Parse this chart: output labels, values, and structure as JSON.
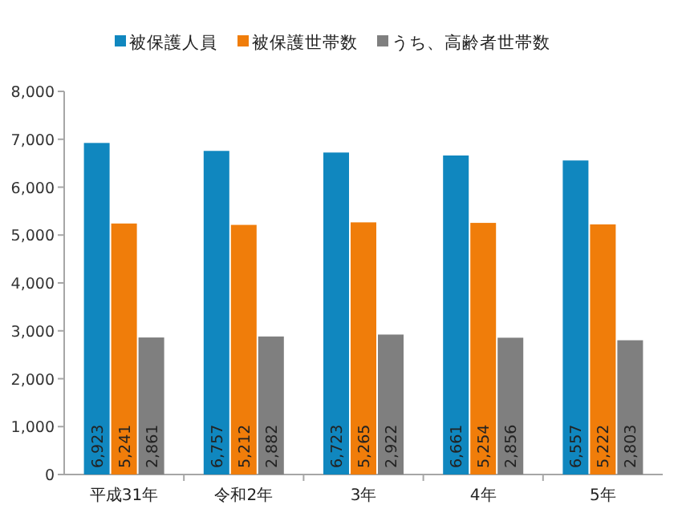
{
  "chart_data": {
    "type": "bar",
    "categories": [
      "平成31年",
      "令和2年",
      "3年",
      "4年",
      "5年"
    ],
    "series": [
      {
        "name": "被保護人員",
        "color": "#1087bf",
        "values": [
          6923,
          6757,
          6723,
          6661,
          6557
        ],
        "value_labels": [
          "6,923",
          "6,757",
          "6,723",
          "6,661",
          "6,557"
        ]
      },
      {
        "name": "被保護世帯数",
        "color": "#f07d0a",
        "values": [
          5241,
          5212,
          5265,
          5254,
          5222
        ],
        "value_labels": [
          "5,241",
          "5,212",
          "5,265",
          "5,254",
          "5,222"
        ]
      },
      {
        "name": "うち、高齢者世帯数",
        "color": "#7f7f7f",
        "values": [
          2861,
          2882,
          2922,
          2856,
          2803
        ],
        "value_labels": [
          "2,861",
          "2,882",
          "2,922",
          "2,856",
          "2,803"
        ]
      }
    ],
    "ylim": [
      0,
      8000
    ],
    "yticks": [
      0,
      {
        "value": 1000,
        "label": "1,000"
      },
      {
        "value": 2000,
        "label": "2,000"
      },
      {
        "value": 3000,
        "label": "3,000"
      },
      {
        "value": 4000,
        "label": "4,000"
      },
      {
        "value": 5000,
        "label": "5,000"
      },
      {
        "value": 6000,
        "label": "6,000"
      },
      {
        "value": 7000,
        "label": "7,000"
      },
      {
        "value": 8000,
        "label": "8,000"
      }
    ],
    "legend": "top",
    "grid": false
  }
}
